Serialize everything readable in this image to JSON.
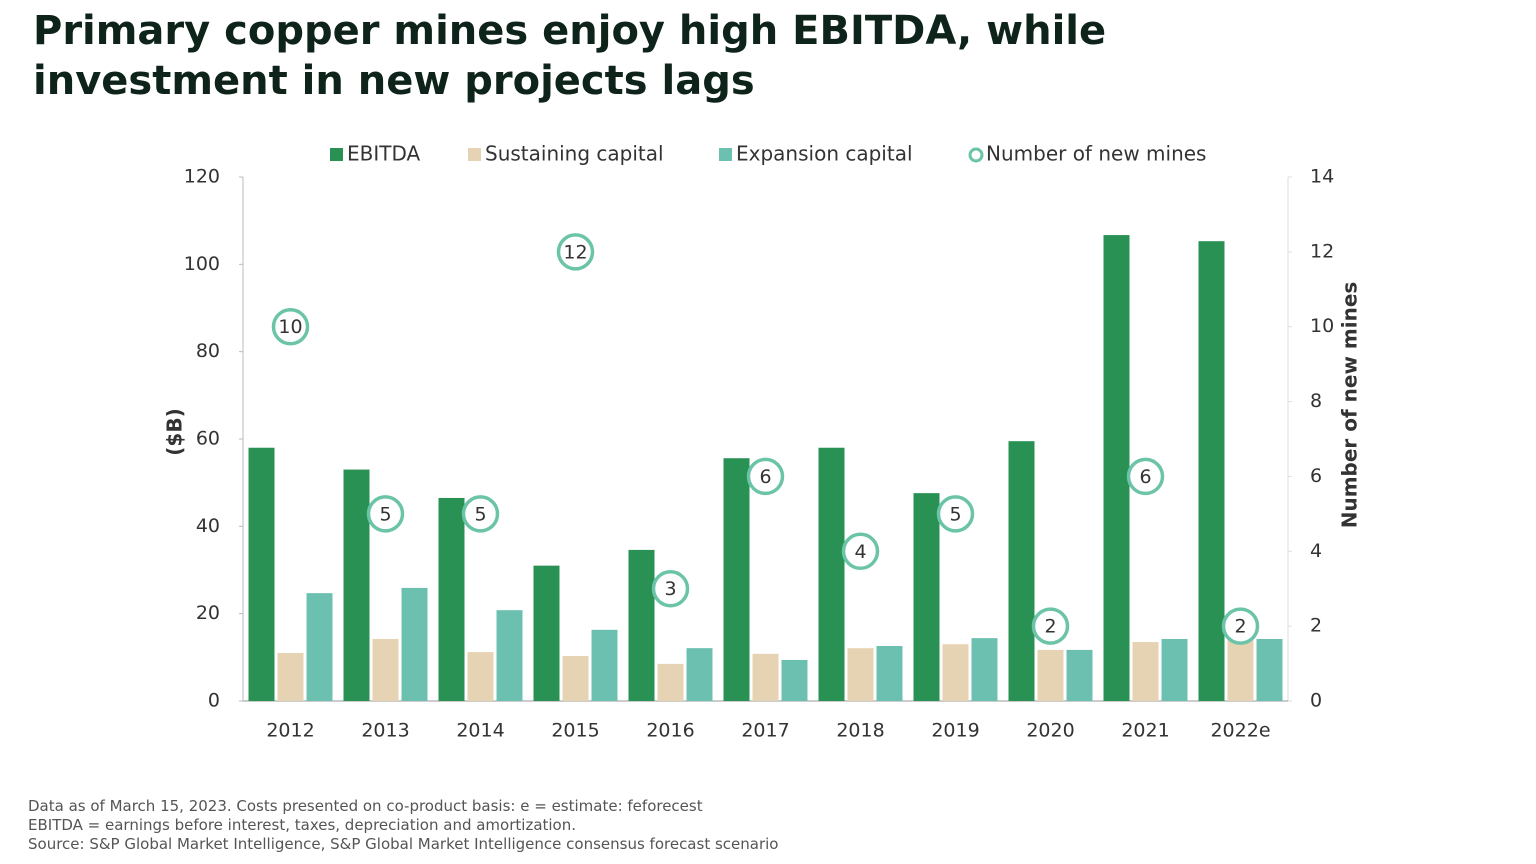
{
  "chart_data": {
    "type": "bar",
    "title": [
      "Primary copper mines enjoy high EBITDA, while",
      "investment in new projects lags"
    ],
    "ylabel": "($B)",
    "y2label": "Number of new mines",
    "categories": [
      "2012",
      "2013",
      "2014",
      "2015",
      "2016",
      "2017",
      "2018",
      "2019",
      "2020",
      "2021",
      "2022e"
    ],
    "series": [
      {
        "name": "EBITDA",
        "color": "#2a9154",
        "values": [
          58,
          53,
          46.5,
          31,
          34.6,
          55.6,
          58,
          47.6,
          59.5,
          106.7,
          105.3
        ]
      },
      {
        "name": "Sustaining capital",
        "color": "#e6d3b3",
        "values": [
          11,
          14.2,
          11.2,
          10.3,
          8.5,
          10.8,
          12.1,
          13,
          11.7,
          13.5,
          14
        ]
      },
      {
        "name": "Expansion capital",
        "color": "#6cc0b0",
        "values": [
          24.7,
          25.9,
          20.8,
          16.3,
          12.1,
          9.4,
          12.6,
          14.4,
          11.7,
          14.2,
          14.2
        ]
      },
      {
        "name": "Number of new mines",
        "color": "#6cc4a8",
        "axis": "y2",
        "marker": "circle",
        "values": [
          10,
          5,
          5,
          12,
          3,
          6,
          4,
          5,
          2,
          6,
          2
        ]
      }
    ],
    "ylim": [
      0,
      120
    ],
    "yticks": [
      0,
      20,
      40,
      60,
      80,
      100,
      120
    ],
    "y2lim": [
      0,
      14
    ],
    "y2ticks": [
      0,
      2,
      4,
      6,
      8,
      10,
      12,
      14
    ],
    "legend": "top",
    "notes": [
      "Data as of March 15, 2023. Costs presented on co-product basis: e = estimate: feforecest",
      "EBITDA = earnings before interest, taxes, depreciation and amortization.",
      "Source: S&P Global Market Intelligence, S&P Global Market Intelligence consensus forecast scenario"
    ]
  }
}
